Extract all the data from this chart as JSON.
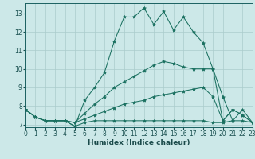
{
  "xlabel": "Humidex (Indice chaleur)",
  "bg_color": "#cce8e8",
  "grid_color": "#aacccc",
  "line_color": "#1a7060",
  "xlim": [
    0,
    23
  ],
  "ylim": [
    6.85,
    13.55
  ],
  "yticks": [
    7,
    8,
    9,
    10,
    11,
    12,
    13
  ],
  "xticks": [
    0,
    1,
    2,
    3,
    4,
    5,
    6,
    7,
    8,
    9,
    10,
    11,
    12,
    13,
    14,
    15,
    16,
    17,
    18,
    19,
    20,
    21,
    22,
    23
  ],
  "series": [
    {
      "x": [
        0,
        1,
        2,
        3,
        4,
        5,
        6,
        7,
        8,
        9,
        10,
        11,
        12,
        13,
        14,
        15,
        16,
        17,
        18,
        19,
        20,
        21,
        22,
        23
      ],
      "y": [
        7.8,
        7.4,
        7.2,
        7.2,
        7.2,
        6.9,
        7.1,
        7.2,
        7.2,
        7.2,
        7.2,
        7.2,
        7.2,
        7.2,
        7.2,
        7.2,
        7.2,
        7.2,
        7.2,
        7.1,
        7.1,
        7.2,
        7.2,
        7.1
      ]
    },
    {
      "x": [
        0,
        1,
        2,
        3,
        4,
        5,
        6,
        7,
        8,
        9,
        10,
        11,
        12,
        13,
        14,
        15,
        16,
        17,
        18,
        19,
        20,
        21,
        22,
        23
      ],
      "y": [
        7.8,
        7.4,
        7.2,
        7.2,
        7.2,
        7.1,
        7.3,
        7.5,
        7.7,
        7.9,
        8.1,
        8.2,
        8.3,
        8.5,
        8.6,
        8.7,
        8.8,
        8.9,
        9.0,
        8.5,
        7.2,
        7.8,
        7.5,
        7.1
      ]
    },
    {
      "x": [
        0,
        1,
        2,
        3,
        4,
        5,
        6,
        7,
        8,
        9,
        10,
        11,
        12,
        13,
        14,
        15,
        16,
        17,
        18,
        19,
        20,
        21,
        22,
        23
      ],
      "y": [
        7.8,
        7.4,
        7.2,
        7.2,
        7.2,
        7.1,
        7.6,
        8.1,
        8.5,
        9.0,
        9.3,
        9.6,
        9.9,
        10.2,
        10.4,
        10.3,
        10.1,
        10.0,
        10.0,
        10.0,
        7.2,
        7.8,
        7.5,
        7.1
      ]
    },
    {
      "x": [
        0,
        1,
        2,
        3,
        4,
        5,
        6,
        7,
        8,
        9,
        10,
        11,
        12,
        13,
        14,
        15,
        16,
        17,
        18,
        19,
        20,
        21,
        22,
        23
      ],
      "y": [
        7.8,
        7.4,
        7.2,
        7.2,
        7.2,
        6.9,
        8.3,
        9.0,
        9.8,
        11.5,
        12.8,
        12.8,
        13.3,
        12.4,
        13.1,
        12.1,
        12.8,
        12.0,
        11.4,
        10.0,
        8.5,
        7.2,
        7.8,
        7.1
      ]
    }
  ]
}
